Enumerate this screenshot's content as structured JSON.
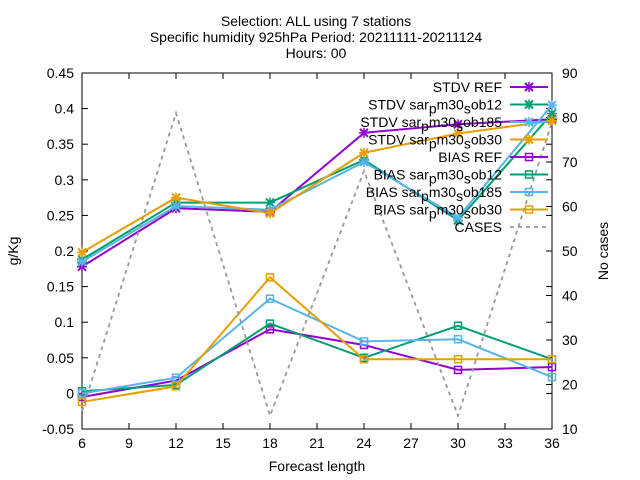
{
  "chart_data": {
    "type": "line",
    "title_lines": [
      "Selection: ALL using     7 stations",
      "Specific humidity 925hPa   Period: 20211111-20211124",
      "Hours: 00"
    ],
    "xlabel": "Forecast length",
    "ylabel": "g/Kg",
    "y2label": "No cases",
    "x": [
      6,
      12,
      18,
      24,
      30,
      36
    ],
    "xlim": [
      6,
      36
    ],
    "xticks": [
      6,
      9,
      12,
      15,
      18,
      21,
      24,
      27,
      30,
      33,
      36
    ],
    "ylim": [
      -0.05,
      0.45
    ],
    "yticks": [
      "-0.05",
      "0",
      "0.05",
      "0.1",
      "0.15",
      "0.2",
      "0.25",
      "0.3",
      "0.35",
      "0.4",
      "0.45"
    ],
    "y2lim": [
      10,
      90
    ],
    "y2ticks": [
      "10",
      "20",
      "30",
      "40",
      "50",
      "60",
      "70",
      "80",
      "90"
    ],
    "grid": false,
    "legend_position": "top-right",
    "series": [
      {
        "name": "STDV REF",
        "color": "#9400d3",
        "marker": "x",
        "axis": "y1",
        "dash": false,
        "values": [
          0.178,
          0.26,
          0.255,
          0.366,
          0.378,
          0.385
        ]
      },
      {
        "name": "STDV sar_pm30_sob12",
        "label_main": "STDV sar",
        "label_sub": "p",
        "label_main2": "m30",
        "label_sub2": "s",
        "label_main3": "ob12",
        "color": "#009e73",
        "marker": "x",
        "axis": "y1",
        "dash": false,
        "values": [
          0.188,
          0.268,
          0.268,
          0.328,
          0.243,
          0.393
        ]
      },
      {
        "name": "STDV sar_pm30_sob185",
        "label_main": "STDV sar",
        "label_sub": "p",
        "label_main2": "m30",
        "label_sub2": "s",
        "label_main3": "ob185",
        "color": "#56b4e9",
        "marker": "x",
        "axis": "y1",
        "dash": false,
        "values": [
          0.185,
          0.263,
          0.258,
          0.325,
          0.247,
          0.405
        ]
      },
      {
        "name": "STDV sar_pm30_sob30",
        "label_main": "STDV sar",
        "label_sub": "p",
        "label_main2": "m30",
        "label_sub2": "s",
        "label_main3": "ob30",
        "color": "#e69f00",
        "marker": "x",
        "axis": "y1",
        "dash": false,
        "values": [
          0.198,
          0.275,
          0.253,
          0.338,
          0.365,
          0.383
        ]
      },
      {
        "name": "BIAS REF",
        "color": "#9400d3",
        "marker": "square",
        "axis": "y1",
        "dash": false,
        "values": [
          -0.005,
          0.018,
          0.09,
          0.068,
          0.033,
          0.037
        ]
      },
      {
        "name": "BIAS sar_pm30_sob12",
        "label_main": "BIAS sar",
        "label_sub": "p",
        "label_main2": "m30",
        "label_sub2": "s",
        "label_main3": "ob12",
        "color": "#009e73",
        "marker": "square",
        "axis": "y1",
        "dash": false,
        "values": [
          0.003,
          0.012,
          0.098,
          0.05,
          0.095,
          0.048
        ]
      },
      {
        "name": "BIAS sar_pm30_sob185",
        "label_main": "BIAS sar",
        "label_sub": "p",
        "label_main2": "m30",
        "label_sub2": "s",
        "label_main3": "ob185",
        "color": "#56b4e9",
        "marker": "square",
        "axis": "y1",
        "dash": false,
        "values": [
          0.0,
          0.022,
          0.133,
          0.073,
          0.076,
          0.023
        ]
      },
      {
        "name": "BIAS sar_pm30_sob30",
        "label_main": "BIAS sar",
        "label_sub": "p",
        "label_main2": "m30",
        "label_sub2": "s",
        "label_main3": "ob30",
        "color": "#e69f00",
        "marker": "square",
        "axis": "y1",
        "dash": false,
        "values": [
          -0.012,
          0.01,
          0.163,
          0.048,
          0.048,
          0.048
        ]
      },
      {
        "name": "CASES",
        "color": "#999999",
        "marker": "none",
        "axis": "y2",
        "dash": true,
        "values": [
          14,
          81,
          13,
          68,
          13,
          79
        ]
      }
    ]
  }
}
